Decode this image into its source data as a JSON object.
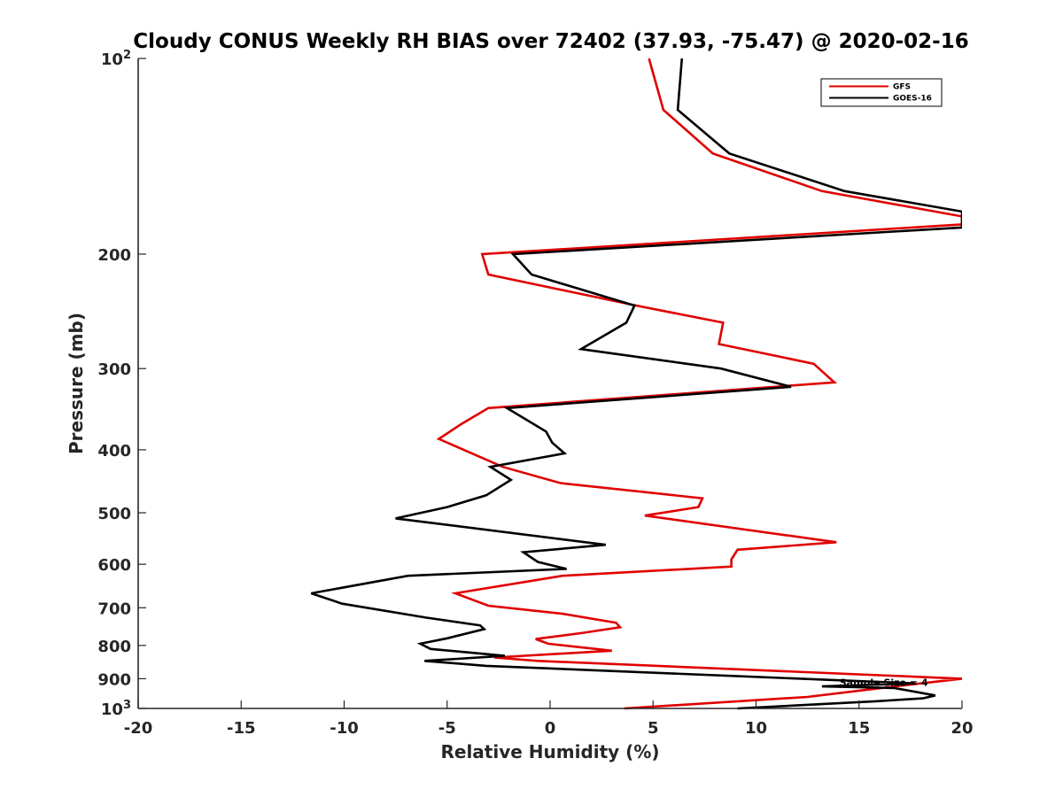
{
  "chart_data": {
    "type": "line",
    "title": "Cloudy CONUS Weekly RH BIAS over 72402 (37.93, -75.47) @ 2020-02-16",
    "xlabel": "Relative Humidity (%)",
    "ylabel": "Pressure (mb)",
    "xlim": [
      -20,
      20
    ],
    "ylim": [
      100,
      1000
    ],
    "yscale": "log",
    "y_reversed": true,
    "grid": false,
    "legend_position": "top-right",
    "xticks": [
      -20,
      -15,
      -10,
      -5,
      0,
      5,
      10,
      15,
      20
    ],
    "xtick_labels": [
      "-20",
      "-15",
      "-10",
      "-5",
      "0",
      "5",
      "10",
      "15",
      "20"
    ],
    "yticks": [
      100,
      200,
      300,
      400,
      500,
      600,
      700,
      800,
      900,
      1000
    ],
    "ytick_labels": [
      {
        "base": "10",
        "exp": "2"
      },
      {
        "base": "200",
        "exp": ""
      },
      {
        "base": "300",
        "exp": ""
      },
      {
        "base": "400",
        "exp": ""
      },
      {
        "base": "500",
        "exp": ""
      },
      {
        "base": "600",
        "exp": ""
      },
      {
        "base": "700",
        "exp": ""
      },
      {
        "base": "800",
        "exp": ""
      },
      {
        "base": "900",
        "exp": ""
      },
      {
        "base": "10",
        "exp": "3"
      }
    ],
    "series": [
      {
        "name": "GFS",
        "color": "#e00000",
        "points": [
          [
            4.8,
            100
          ],
          [
            5.5,
            120
          ],
          [
            7.9,
            140
          ],
          [
            13.2,
            160
          ],
          [
            20.0,
            175
          ],
          [
            20.0,
            180
          ],
          [
            -3.3,
            200
          ],
          [
            -3.0,
            215
          ],
          [
            4.2,
            240
          ],
          [
            8.4,
            255
          ],
          [
            8.2,
            275
          ],
          [
            12.8,
            295
          ],
          [
            13.8,
            315
          ],
          [
            -3.0,
            345
          ],
          [
            -4.3,
            365
          ],
          [
            -5.4,
            385
          ],
          [
            -2.3,
            425
          ],
          [
            0.5,
            450
          ],
          [
            7.4,
            475
          ],
          [
            7.2,
            490
          ],
          [
            4.6,
            505
          ],
          [
            13.9,
            555
          ],
          [
            9.1,
            570
          ],
          [
            8.8,
            590
          ],
          [
            8.8,
            605
          ],
          [
            0.6,
            625
          ],
          [
            -4.6,
            665
          ],
          [
            -3.0,
            695
          ],
          [
            0.6,
            715
          ],
          [
            3.2,
            738
          ],
          [
            3.4,
            750
          ],
          [
            1.6,
            765
          ],
          [
            -0.7,
            782
          ],
          [
            -0.1,
            795
          ],
          [
            3.0,
            815
          ],
          [
            -2.7,
            835
          ],
          [
            -0.6,
            845
          ],
          [
            20.0,
            900
          ],
          [
            18.0,
            915
          ],
          [
            15.5,
            935
          ],
          [
            12.5,
            960
          ],
          [
            3.6,
            1000
          ]
        ]
      },
      {
        "name": "GOES-16",
        "color": "#000000",
        "points": [
          [
            6.4,
            100
          ],
          [
            6.2,
            120
          ],
          [
            8.7,
            140
          ],
          [
            14.3,
            160
          ],
          [
            20.0,
            172
          ],
          [
            20.0,
            182
          ],
          [
            -1.8,
            200
          ],
          [
            -0.9,
            215
          ],
          [
            4.1,
            240
          ],
          [
            3.7,
            255
          ],
          [
            1.5,
            280
          ],
          [
            8.3,
            300
          ],
          [
            11.7,
            320
          ],
          [
            -2.1,
            345
          ],
          [
            -0.2,
            375
          ],
          [
            0.1,
            390
          ],
          [
            0.7,
            405
          ],
          [
            -2.9,
            425
          ],
          [
            -1.9,
            445
          ],
          [
            -3.1,
            470
          ],
          [
            -5.0,
            490
          ],
          [
            -7.5,
            510
          ],
          [
            2.7,
            560
          ],
          [
            -1.3,
            575
          ],
          [
            -0.6,
            595
          ],
          [
            0.8,
            610
          ],
          [
            -6.9,
            625
          ],
          [
            -11.6,
            665
          ],
          [
            -10.1,
            690
          ],
          [
            -6.0,
            725
          ],
          [
            -3.4,
            745
          ],
          [
            -3.2,
            755
          ],
          [
            -5.0,
            780
          ],
          [
            -6.3,
            795
          ],
          [
            -5.8,
            810
          ],
          [
            -2.2,
            830
          ],
          [
            -6.1,
            845
          ],
          [
            -3.1,
            860
          ],
          [
            17.7,
            915
          ],
          [
            13.2,
            925
          ],
          [
            16.7,
            930
          ],
          [
            18.7,
            955
          ],
          [
            18.1,
            965
          ],
          [
            15.8,
            975
          ],
          [
            9.1,
            1000
          ]
        ]
      }
    ],
    "annotations": [
      {
        "text": "Sample Size = 4",
        "x": 16.2,
        "y": 912
      }
    ]
  }
}
